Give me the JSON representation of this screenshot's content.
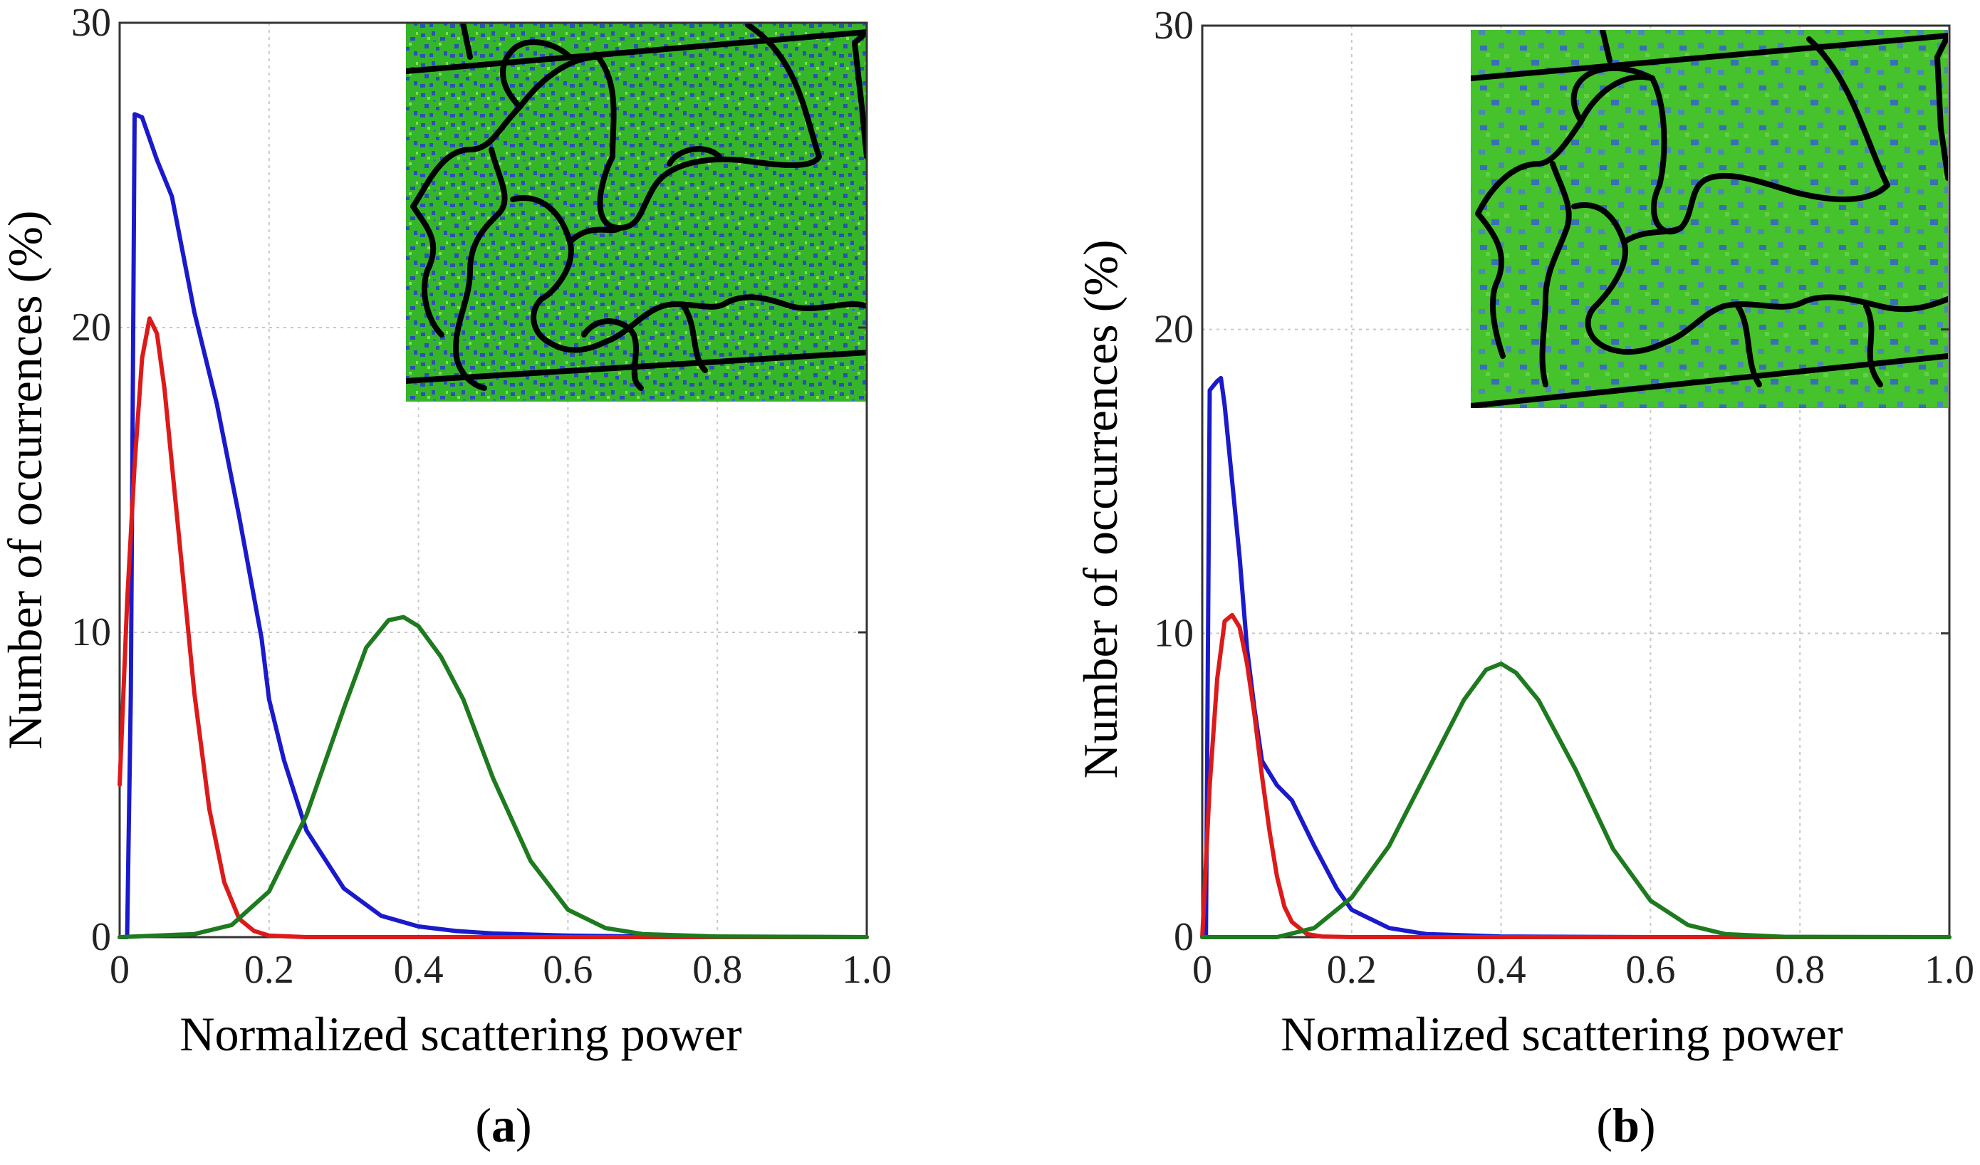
{
  "chart_data": [
    {
      "type": "line",
      "panel_label_prefix": "(",
      "panel_label": "a",
      "panel_label_suffix": ")",
      "xlabel": "Normalized scattering power",
      "ylabel": "Number of occurrences (%)",
      "xlim": [
        0,
        1.0
      ],
      "ylim": [
        0,
        30
      ],
      "xticks": [
        "0",
        "0.2",
        "0.4",
        "0.6",
        "0.8",
        "1.0"
      ],
      "yticks": [
        "0",
        "10",
        "20",
        "30"
      ],
      "grid": true,
      "inset": {
        "kind": "image",
        "placement": "top-right",
        "colors": [
          "#33bb22",
          "#2a4fbf",
          "#000000"
        ]
      },
      "series": [
        {
          "name": "blue",
          "color": "#1a1acc",
          "x": [
            0,
            0.01,
            0.015,
            0.02,
            0.03,
            0.05,
            0.07,
            0.1,
            0.13,
            0.16,
            0.19,
            0.2,
            0.22,
            0.25,
            0.3,
            0.35,
            0.4,
            0.45,
            0.5,
            0.6,
            0.7,
            0.8,
            1.0
          ],
          "y": [
            0,
            0,
            8,
            27,
            26.9,
            25.5,
            24.3,
            20.5,
            17.5,
            13.8,
            9.8,
            7.8,
            5.8,
            3.5,
            1.6,
            0.7,
            0.35,
            0.2,
            0.12,
            0.05,
            0.02,
            0.01,
            0
          ]
        },
        {
          "name": "red",
          "color": "#dd1a1a",
          "x": [
            0,
            0.01,
            0.02,
            0.03,
            0.04,
            0.05,
            0.06,
            0.08,
            0.1,
            0.12,
            0.14,
            0.16,
            0.18,
            0.2,
            0.25,
            0.3,
            0.4,
            0.6,
            1.0
          ],
          "y": [
            5,
            11,
            15.5,
            19,
            20.3,
            19.8,
            18,
            13,
            8,
            4.2,
            1.8,
            0.6,
            0.2,
            0.05,
            0,
            0,
            0,
            0,
            0
          ]
        },
        {
          "name": "green",
          "color": "#1e7a1e",
          "x": [
            0,
            0.1,
            0.15,
            0.2,
            0.25,
            0.3,
            0.33,
            0.36,
            0.38,
            0.4,
            0.43,
            0.46,
            0.5,
            0.55,
            0.6,
            0.65,
            0.7,
            0.8,
            1.0
          ],
          "y": [
            0,
            0.1,
            0.4,
            1.5,
            4,
            7.5,
            9.5,
            10.4,
            10.5,
            10.2,
            9.2,
            7.8,
            5.2,
            2.5,
            0.9,
            0.3,
            0.1,
            0.02,
            0
          ]
        }
      ]
    },
    {
      "type": "line",
      "panel_label_prefix": "(",
      "panel_label": "b",
      "panel_label_suffix": ")",
      "xlabel": "Normalized scattering power",
      "ylabel": "Number of occurrences (%)",
      "xlim": [
        0,
        1.0
      ],
      "ylim": [
        0,
        30
      ],
      "xticks": [
        "0",
        "0.2",
        "0.4",
        "0.6",
        "0.8",
        "1.0"
      ],
      "yticks": [
        "0",
        "10",
        "20",
        "30"
      ],
      "grid": true,
      "inset": {
        "kind": "image",
        "placement": "top-right",
        "colors": [
          "#44cc22",
          "#3366bb",
          "#000000"
        ]
      },
      "series": [
        {
          "name": "blue",
          "color": "#1a1acc",
          "x": [
            0,
            0.005,
            0.01,
            0.02,
            0.025,
            0.03,
            0.04,
            0.05,
            0.06,
            0.07,
            0.08,
            0.1,
            0.12,
            0.13,
            0.15,
            0.18,
            0.2,
            0.25,
            0.3,
            0.4,
            0.6,
            1.0
          ],
          "y": [
            0,
            0,
            18,
            18.3,
            18.4,
            17.5,
            15,
            12.5,
            9.5,
            7.5,
            5.8,
            5,
            4.5,
            4,
            3,
            1.6,
            0.9,
            0.3,
            0.1,
            0.02,
            0,
            0
          ]
        },
        {
          "name": "red",
          "color": "#dd1a1a",
          "x": [
            0,
            0.01,
            0.02,
            0.03,
            0.04,
            0.05,
            0.06,
            0.07,
            0.08,
            0.09,
            0.1,
            0.11,
            0.12,
            0.14,
            0.16,
            0.2,
            0.3,
            1.0
          ],
          "y": [
            0,
            5,
            8.5,
            10.4,
            10.6,
            10.2,
            9,
            7.3,
            5.3,
            3.5,
            2,
            1,
            0.5,
            0.1,
            0.02,
            0,
            0,
            0
          ]
        },
        {
          "name": "green",
          "color": "#1e7a1e",
          "x": [
            0,
            0.1,
            0.15,
            0.2,
            0.25,
            0.3,
            0.35,
            0.38,
            0.4,
            0.42,
            0.45,
            0.5,
            0.55,
            0.6,
            0.65,
            0.7,
            0.78,
            1.0
          ],
          "y": [
            0,
            0,
            0.3,
            1.3,
            3,
            5.4,
            7.8,
            8.8,
            9,
            8.7,
            7.8,
            5.5,
            2.9,
            1.2,
            0.4,
            0.1,
            0.01,
            0
          ]
        }
      ]
    }
  ]
}
